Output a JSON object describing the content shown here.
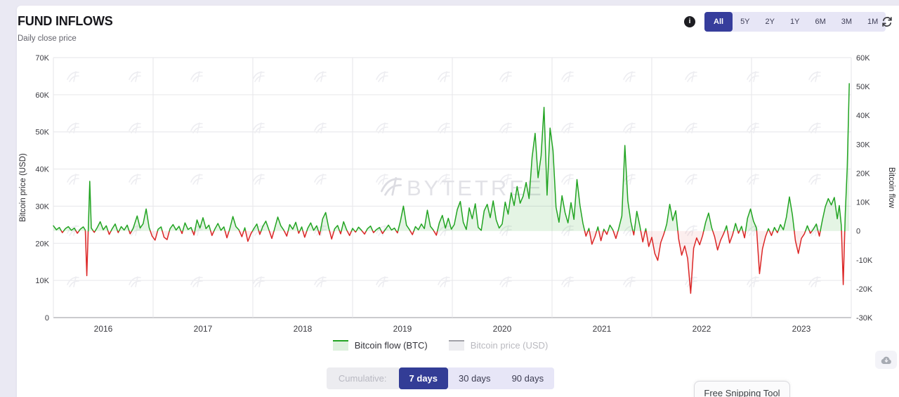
{
  "header": {
    "title": "FUND INFLOWS",
    "subtitle": "Daily close price"
  },
  "toolbar": {
    "info_icon_glyph": "i",
    "range_options": [
      "All",
      "5Y",
      "2Y",
      "1Y",
      "6M",
      "3M",
      "1M"
    ],
    "active_range": "All"
  },
  "legend": {
    "items": [
      {
        "label": "Bitcoin flow (BTC)",
        "active": true,
        "line_color": "#22a422",
        "fill_color": "#ddf0dd",
        "text_color": "#33333a"
      },
      {
        "label": "Bitcoin price (USD)",
        "active": false,
        "line_color": "#a2a2a8",
        "fill_color": "#ededf0",
        "text_color": "#b9b9bf"
      }
    ]
  },
  "cumulative": {
    "label": "Cumulative:",
    "options": [
      "7 days",
      "30 days",
      "90 days"
    ],
    "active": "7 days"
  },
  "overlay": {
    "tooltip": "Free Snipping Tool"
  },
  "watermark": {
    "text": "BYTETREE"
  },
  "colors": {
    "accent_indigo": "#363d9c",
    "lavender_bg": "#e7e6f6",
    "flow_positive": "#22a422",
    "flow_negative": "#dc2626",
    "grid": "#e6e6ea",
    "axis_line": "#97979c",
    "tick_text": "#3a3a40",
    "watermark": "#e4e4e9"
  },
  "chart_data": {
    "type": "line",
    "title": "FUND INFLOWS",
    "subtitle": "Daily close price",
    "grid": true,
    "legend_position": "bottom",
    "x_label": "",
    "x_range_years": [
      2016,
      2024
    ],
    "x_ticks": [
      "2016",
      "2017",
      "2018",
      "2019",
      "2020",
      "2021",
      "2022",
      "2023"
    ],
    "y_left": {
      "label": "Bitcoin price (USD)",
      "ticks": [
        "70K",
        "60K",
        "50K",
        "40K",
        "30K",
        "20K",
        "10K",
        "0"
      ],
      "range_usd": [
        0,
        70000
      ]
    },
    "y_right": {
      "label": "Bitcoin flow",
      "ticks": [
        "60K",
        "50K",
        "40K",
        "30K",
        "20K",
        "10K",
        "0",
        "-10K",
        "-20K",
        "-30K"
      ],
      "range_btc": [
        -30000,
        60000
      ]
    },
    "series": [
      {
        "name": "Bitcoin flow (BTC)",
        "visible": true,
        "unit": "thousand BTC (7-day cumulative flow)",
        "pos_color": "#22a422",
        "neg_color": "#dc2626",
        "pos_fill_opacity": 0.12,
        "neg_fill_opacity": 0.08,
        "points": [
          [
            2016.0,
            1.8
          ],
          [
            2016.03,
            0.4
          ],
          [
            2016.06,
            1.2
          ],
          [
            2016.09,
            -0.6
          ],
          [
            2016.12,
            0.8
          ],
          [
            2016.15,
            1.5
          ],
          [
            2016.18,
            0.2
          ],
          [
            2016.21,
            1.0
          ],
          [
            2016.24,
            -0.8
          ],
          [
            2016.27,
            0.6
          ],
          [
            2016.3,
            1.4
          ],
          [
            2016.32,
            0.3
          ],
          [
            2016.335,
            -15.5
          ],
          [
            2016.35,
            0.5
          ],
          [
            2016.365,
            17.2
          ],
          [
            2016.38,
            1.0
          ],
          [
            2016.41,
            -0.5
          ],
          [
            2016.44,
            1.2
          ],
          [
            2016.47,
            3.2
          ],
          [
            2016.5,
            0.4
          ],
          [
            2016.53,
            1.8
          ],
          [
            2016.56,
            -1.2
          ],
          [
            2016.59,
            0.8
          ],
          [
            2016.62,
            2.4
          ],
          [
            2016.65,
            -0.6
          ],
          [
            2016.68,
            1.5
          ],
          [
            2016.71,
            0.3
          ],
          [
            2016.74,
            2.0
          ],
          [
            2016.77,
            -1.0
          ],
          [
            2016.8,
            0.9
          ],
          [
            2016.84,
            5.2
          ],
          [
            2016.87,
            1.0
          ],
          [
            2016.9,
            2.5
          ],
          [
            2016.93,
            7.6
          ],
          [
            2016.96,
            1.2
          ],
          [
            2016.99,
            -1.8
          ],
          [
            2017.02,
            -3.2
          ],
          [
            2017.05,
            0.6
          ],
          [
            2017.08,
            1.4
          ],
          [
            2017.11,
            -2.2
          ],
          [
            2017.14,
            -3.0
          ],
          [
            2017.17,
            0.8
          ],
          [
            2017.2,
            2.2
          ],
          [
            2017.23,
            0.3
          ],
          [
            2017.26,
            1.6
          ],
          [
            2017.29,
            -0.9
          ],
          [
            2017.32,
            2.8
          ],
          [
            2017.35,
            0.5
          ],
          [
            2017.38,
            1.2
          ],
          [
            2017.41,
            -1.4
          ],
          [
            2017.44,
            3.8
          ],
          [
            2017.47,
            1.0
          ],
          [
            2017.5,
            4.6
          ],
          [
            2017.53,
            0.8
          ],
          [
            2017.56,
            2.0
          ],
          [
            2017.59,
            -1.6
          ],
          [
            2017.62,
            0.7
          ],
          [
            2017.65,
            2.6
          ],
          [
            2017.68,
            0.2
          ],
          [
            2017.71,
            1.4
          ],
          [
            2017.74,
            -2.4
          ],
          [
            2017.77,
            0.9
          ],
          [
            2017.8,
            5.0
          ],
          [
            2017.83,
            1.5
          ],
          [
            2017.86,
            0.4
          ],
          [
            2017.89,
            -2.0
          ],
          [
            2017.92,
            1.1
          ],
          [
            2017.95,
            -3.6
          ],
          [
            2017.98,
            -1.0
          ],
          [
            2018.01,
            0.8
          ],
          [
            2018.04,
            2.4
          ],
          [
            2018.07,
            -1.2
          ],
          [
            2018.1,
            1.6
          ],
          [
            2018.13,
            3.4
          ],
          [
            2018.16,
            0.5
          ],
          [
            2018.19,
            -2.6
          ],
          [
            2018.22,
            1.0
          ],
          [
            2018.25,
            4.8
          ],
          [
            2018.28,
            1.8
          ],
          [
            2018.31,
            0.3
          ],
          [
            2018.34,
            -1.8
          ],
          [
            2018.37,
            2.2
          ],
          [
            2018.4,
            0.6
          ],
          [
            2018.43,
            3.0
          ],
          [
            2018.46,
            -0.8
          ],
          [
            2018.49,
            1.4
          ],
          [
            2018.52,
            -2.2
          ],
          [
            2018.55,
            0.9
          ],
          [
            2018.58,
            2.8
          ],
          [
            2018.61,
            0.2
          ],
          [
            2018.64,
            1.8
          ],
          [
            2018.67,
            -1.4
          ],
          [
            2018.7,
            4.2
          ],
          [
            2018.73,
            6.4
          ],
          [
            2018.76,
            1.2
          ],
          [
            2018.79,
            -2.8
          ],
          [
            2018.82,
            0.7
          ],
          [
            2018.85,
            1.9
          ],
          [
            2018.88,
            -1.0
          ],
          [
            2018.91,
            3.2
          ],
          [
            2018.94,
            0.4
          ],
          [
            2018.97,
            -1.6
          ],
          [
            2019.0,
            0.9
          ],
          [
            2019.03,
            -0.4
          ],
          [
            2019.06,
            1.3
          ],
          [
            2019.09,
            0.2
          ],
          [
            2019.12,
            -1.1
          ],
          [
            2019.15,
            0.8
          ],
          [
            2019.18,
            1.7
          ],
          [
            2019.21,
            -0.6
          ],
          [
            2019.24,
            0.5
          ],
          [
            2019.27,
            1.2
          ],
          [
            2019.3,
            -0.9
          ],
          [
            2019.33,
            0.6
          ],
          [
            2019.36,
            2.0
          ],
          [
            2019.39,
            0.3
          ],
          [
            2019.42,
            1.0
          ],
          [
            2019.45,
            -0.7
          ],
          [
            2019.48,
            3.5
          ],
          [
            2019.51,
            8.6
          ],
          [
            2019.54,
            2.0
          ],
          [
            2019.57,
            0.5
          ],
          [
            2019.6,
            -1.3
          ],
          [
            2019.63,
            1.5
          ],
          [
            2019.66,
            0.4
          ],
          [
            2019.69,
            2.4
          ],
          [
            2019.72,
            0.8
          ],
          [
            2019.75,
            7.2
          ],
          [
            2019.78,
            1.6
          ],
          [
            2019.81,
            0.3
          ],
          [
            2019.84,
            -1.5
          ],
          [
            2019.87,
            2.8
          ],
          [
            2019.9,
            5.4
          ],
          [
            2019.93,
            1.0
          ],
          [
            2019.96,
            4.4
          ],
          [
            2019.99,
            0.6
          ],
          [
            2020.02,
            2.2
          ],
          [
            2020.05,
            7.4
          ],
          [
            2020.08,
            10.2
          ],
          [
            2020.11,
            3.0
          ],
          [
            2020.14,
            0.5
          ],
          [
            2020.17,
            8.0
          ],
          [
            2020.2,
            4.2
          ],
          [
            2020.23,
            9.4
          ],
          [
            2020.26,
            1.2
          ],
          [
            2020.29,
            0.2
          ],
          [
            2020.32,
            7.0
          ],
          [
            2020.35,
            9.2
          ],
          [
            2020.38,
            4.6
          ],
          [
            2020.41,
            10.4
          ],
          [
            2020.44,
            3.8
          ],
          [
            2020.47,
            1.0
          ],
          [
            2020.5,
            2.4
          ],
          [
            2020.53,
            10.0
          ],
          [
            2020.56,
            5.8
          ],
          [
            2020.59,
            13.2
          ],
          [
            2020.62,
            8.8
          ],
          [
            2020.65,
            15.4
          ],
          [
            2020.68,
            9.6
          ],
          [
            2020.71,
            12.0
          ],
          [
            2020.74,
            16.8
          ],
          [
            2020.77,
            11.2
          ],
          [
            2020.8,
            25.5
          ],
          [
            2020.83,
            33.8
          ],
          [
            2020.86,
            18.4
          ],
          [
            2020.89,
            26.0
          ],
          [
            2020.92,
            42.8
          ],
          [
            2020.95,
            12.4
          ],
          [
            2020.98,
            35.6
          ],
          [
            2021.01,
            27.8
          ],
          [
            2021.04,
            8.2
          ],
          [
            2021.07,
            3.0
          ],
          [
            2021.1,
            12.2
          ],
          [
            2021.13,
            6.4
          ],
          [
            2021.16,
            2.8
          ],
          [
            2021.19,
            9.8
          ],
          [
            2021.22,
            4.0
          ],
          [
            2021.25,
            17.8
          ],
          [
            2021.28,
            8.8
          ],
          [
            2021.31,
            2.6
          ],
          [
            2021.34,
            -1.8
          ],
          [
            2021.37,
            0.9
          ],
          [
            2021.4,
            -4.6
          ],
          [
            2021.43,
            -2.0
          ],
          [
            2021.46,
            1.4
          ],
          [
            2021.49,
            -3.4
          ],
          [
            2021.52,
            0.6
          ],
          [
            2021.55,
            -1.2
          ],
          [
            2021.58,
            2.0
          ],
          [
            2021.61,
            0.4
          ],
          [
            2021.64,
            -2.6
          ],
          [
            2021.67,
            1.0
          ],
          [
            2021.7,
            5.2
          ],
          [
            2021.73,
            29.6
          ],
          [
            2021.76,
            10.4
          ],
          [
            2021.79,
            3.2
          ],
          [
            2021.82,
            -1.4
          ],
          [
            2021.85,
            6.8
          ],
          [
            2021.88,
            1.8
          ],
          [
            2021.91,
            -3.8
          ],
          [
            2021.94,
            0.8
          ],
          [
            2021.97,
            -5.4
          ],
          [
            2022.0,
            -2.2
          ],
          [
            2022.03,
            -7.8
          ],
          [
            2022.06,
            -10.2
          ],
          [
            2022.09,
            -4.0
          ],
          [
            2022.12,
            -1.2
          ],
          [
            2022.15,
            2.4
          ],
          [
            2022.18,
            9.2
          ],
          [
            2022.21,
            3.6
          ],
          [
            2022.24,
            7.0
          ],
          [
            2022.27,
            -2.8
          ],
          [
            2022.3,
            -8.4
          ],
          [
            2022.33,
            -5.2
          ],
          [
            2022.36,
            -9.6
          ],
          [
            2022.39,
            -21.6
          ],
          [
            2022.42,
            -6.0
          ],
          [
            2022.45,
            -2.4
          ],
          [
            2022.48,
            -4.8
          ],
          [
            2022.51,
            -1.6
          ],
          [
            2022.54,
            3.0
          ],
          [
            2022.57,
            6.2
          ],
          [
            2022.6,
            1.2
          ],
          [
            2022.63,
            -2.0
          ],
          [
            2022.66,
            -6.6
          ],
          [
            2022.69,
            -3.2
          ],
          [
            2022.72,
            -1.0
          ],
          [
            2022.75,
            1.8
          ],
          [
            2022.78,
            -4.2
          ],
          [
            2022.81,
            -1.4
          ],
          [
            2022.84,
            2.6
          ],
          [
            2022.87,
            -0.8
          ],
          [
            2022.9,
            1.6
          ],
          [
            2022.93,
            -2.4
          ],
          [
            2022.96,
            4.4
          ],
          [
            2022.99,
            7.6
          ],
          [
            2023.02,
            3.4
          ],
          [
            2023.05,
            1.0
          ],
          [
            2023.08,
            -14.8
          ],
          [
            2023.11,
            -6.2
          ],
          [
            2023.14,
            -2.0
          ],
          [
            2023.17,
            0.8
          ],
          [
            2023.2,
            -1.6
          ],
          [
            2023.23,
            1.2
          ],
          [
            2023.26,
            -0.6
          ],
          [
            2023.29,
            2.2
          ],
          [
            2023.32,
            0.4
          ],
          [
            2023.35,
            4.8
          ],
          [
            2023.38,
            11.8
          ],
          [
            2023.41,
            5.6
          ],
          [
            2023.44,
            -3.4
          ],
          [
            2023.47,
            -7.8
          ],
          [
            2023.5,
            -2.6
          ],
          [
            2023.53,
            -1.0
          ],
          [
            2023.56,
            1.8
          ],
          [
            2023.59,
            -0.8
          ],
          [
            2023.62,
            0.6
          ],
          [
            2023.65,
            2.4
          ],
          [
            2023.68,
            -1.8
          ],
          [
            2023.71,
            3.6
          ],
          [
            2023.74,
            8.4
          ],
          [
            2023.77,
            11.2
          ],
          [
            2023.8,
            9.0
          ],
          [
            2023.83,
            11.6
          ],
          [
            2023.86,
            4.2
          ],
          [
            2023.88,
            8.8
          ],
          [
            2023.9,
            2.0
          ],
          [
            2023.92,
            -18.6
          ],
          [
            2023.94,
            6.0
          ],
          [
            2023.96,
            22.0
          ],
          [
            2023.98,
            51.0
          ]
        ]
      },
      {
        "name": "Bitcoin price (USD)",
        "visible": false,
        "note": "series hidden (legend entry greyed out)"
      }
    ]
  }
}
